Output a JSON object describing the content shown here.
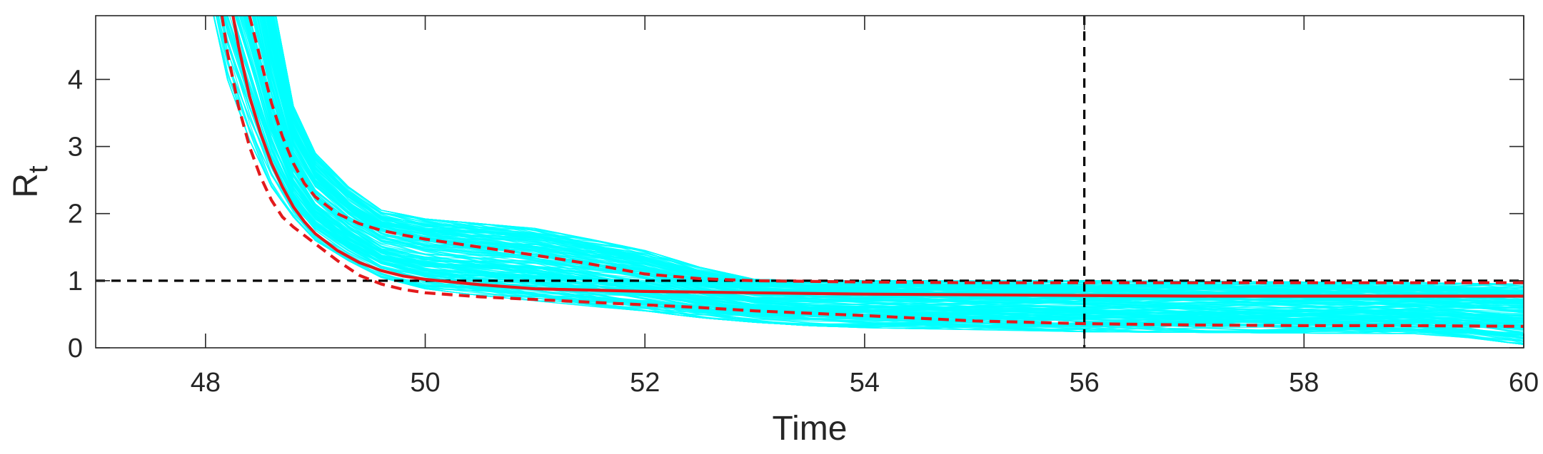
{
  "chart_data": {
    "type": "line",
    "xlabel": "Time",
    "ylabel": {
      "main": "R",
      "subscript": "t"
    },
    "xlim": [
      47,
      60
    ],
    "ylim": [
      0,
      4.95
    ],
    "xticks": [
      48,
      50,
      52,
      54,
      56,
      58,
      60
    ],
    "xtick_labels": [
      "48",
      "50",
      "52",
      "54",
      "56",
      "58",
      "60"
    ],
    "yticks": [
      0,
      1,
      2,
      3,
      4
    ],
    "ytick_labels": [
      "0",
      "1",
      "2",
      "3",
      "4"
    ],
    "grid": false,
    "legend": "none",
    "reference_lines": [
      {
        "orientation": "horizontal",
        "value": 1,
        "style": "dashed",
        "color": "#000000"
      },
      {
        "orientation": "vertical",
        "value": 56,
        "style": "dashed",
        "color": "#000000"
      }
    ],
    "sample_band": {
      "color": "#00ffff",
      "trajectory_count": 200,
      "x": [
        48.0,
        48.2,
        48.4,
        48.6,
        48.8,
        49.0,
        49.3,
        49.6,
        50.0,
        50.5,
        51.0,
        51.5,
        52.0,
        52.5,
        53.0,
        53.5,
        54.0,
        55.0,
        56.0,
        57.0,
        58.0,
        59.0,
        59.5,
        60.0
      ],
      "lower": [
        5.5,
        4.0,
        3.1,
        2.4,
        1.95,
        1.6,
        1.3,
        1.05,
        0.88,
        0.78,
        0.7,
        0.62,
        0.55,
        0.45,
        0.38,
        0.33,
        0.3,
        0.27,
        0.24,
        0.23,
        0.22,
        0.21,
        0.15,
        0.05
      ],
      "upper": [
        9.0,
        9.0,
        7.5,
        5.3,
        3.6,
        2.9,
        2.4,
        2.05,
        1.92,
        1.85,
        1.78,
        1.62,
        1.45,
        1.2,
        1.02,
        1.0,
        1.0,
        1.0,
        1.0,
        0.99,
        0.98,
        0.97,
        0.96,
        0.95
      ]
    },
    "series": [
      {
        "name": "",
        "role": "median",
        "color": "#e31a1c",
        "style": "solid",
        "x": [
          48.25,
          48.3,
          48.4,
          48.5,
          48.6,
          48.7,
          48.8,
          48.9,
          49.0,
          49.2,
          49.4,
          49.6,
          49.8,
          50.0,
          50.5,
          51.0,
          52.0,
          53.0,
          54.0,
          55.0,
          56.0,
          57.0,
          58.0,
          59.0,
          60.0
        ],
        "values": [
          4.95,
          4.5,
          3.75,
          3.2,
          2.75,
          2.4,
          2.1,
          1.88,
          1.7,
          1.45,
          1.27,
          1.15,
          1.07,
          1.02,
          0.94,
          0.88,
          0.84,
          0.82,
          0.8,
          0.79,
          0.78,
          0.77,
          0.77,
          0.77,
          0.77
        ]
      },
      {
        "name": "",
        "role": "upper-bound",
        "color": "#e31a1c",
        "style": "dashed",
        "x": [
          48.4,
          48.5,
          48.6,
          48.7,
          48.8,
          48.9,
          49.0,
          49.2,
          49.4,
          49.6,
          49.8,
          50.0,
          50.5,
          51.0,
          51.5,
          52.0,
          52.5,
          53.0,
          53.5,
          54.0,
          55.0,
          56.0,
          57.0,
          58.0,
          59.0,
          60.0
        ],
        "values": [
          4.95,
          4.3,
          3.65,
          3.15,
          2.75,
          2.45,
          2.25,
          2.0,
          1.85,
          1.75,
          1.68,
          1.62,
          1.5,
          1.38,
          1.25,
          1.1,
          1.03,
          1.0,
          0.99,
          0.98,
          0.97,
          0.97,
          0.97,
          0.97,
          0.97,
          0.97
        ]
      },
      {
        "name": "",
        "role": "lower-bound",
        "color": "#e31a1c",
        "style": "dashed",
        "x": [
          48.15,
          48.2,
          48.3,
          48.4,
          48.5,
          48.6,
          48.7,
          48.8,
          49.0,
          49.2,
          49.4,
          49.6,
          49.8,
          50.0,
          50.5,
          51.0,
          51.5,
          52.0,
          52.5,
          53.0,
          54.0,
          55.0,
          56.0,
          57.0,
          58.0,
          59.0,
          60.0
        ],
        "values": [
          4.95,
          4.4,
          3.6,
          3.0,
          2.55,
          2.2,
          1.95,
          1.8,
          1.55,
          1.3,
          1.08,
          0.95,
          0.87,
          0.82,
          0.76,
          0.72,
          0.68,
          0.64,
          0.6,
          0.55,
          0.48,
          0.4,
          0.36,
          0.34,
          0.33,
          0.33,
          0.32
        ]
      }
    ]
  }
}
